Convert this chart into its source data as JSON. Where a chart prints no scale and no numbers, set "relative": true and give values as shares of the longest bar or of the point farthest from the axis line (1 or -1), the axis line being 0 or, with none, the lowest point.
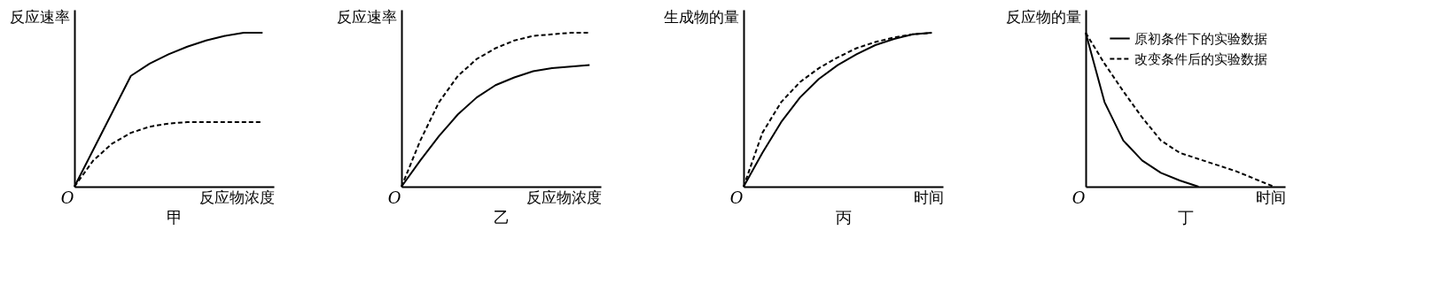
{
  "chart_data": [
    {
      "type": "line",
      "title": "甲",
      "xlabel": "反应物浓度",
      "ylabel": "反应速率",
      "relative": true,
      "annotations": [
        "O"
      ],
      "categories": [
        null,
        null,
        null,
        null,
        null,
        null,
        null,
        null,
        null,
        null,
        null
      ],
      "series": [
        {
          "color": "#000000",
          "line_style": "solid",
          "values": [
            0,
            0.24,
            0.48,
            0.72,
            0.8,
            0.86,
            0.91,
            0.95,
            0.98,
            1.0,
            1.0
          ]
        },
        {
          "color": "#000000",
          "line_style": "dashed",
          "values": [
            0,
            0.17,
            0.28,
            0.35,
            0.39,
            0.41,
            0.42,
            0.42,
            0.42,
            0.42,
            0.42
          ]
        }
      ]
    },
    {
      "type": "line",
      "title": "乙",
      "xlabel": "反应物浓度",
      "ylabel": "反应速率",
      "relative": true,
      "annotations": [
        "O"
      ],
      "categories": [
        null,
        null,
        null,
        null,
        null,
        null,
        null,
        null,
        null,
        null,
        null
      ],
      "series": [
        {
          "color": "#000000",
          "line_style": "solid",
          "values": [
            0,
            0.17,
            0.33,
            0.47,
            0.58,
            0.66,
            0.71,
            0.75,
            0.77,
            0.78,
            0.79
          ]
        },
        {
          "color": "#000000",
          "line_style": "dashed",
          "values": [
            0,
            0.3,
            0.55,
            0.72,
            0.83,
            0.9,
            0.95,
            0.98,
            0.99,
            1.0,
            1.0
          ]
        }
      ]
    },
    {
      "type": "line",
      "title": "丙",
      "xlabel": "时间",
      "ylabel": "生成物的量",
      "relative": true,
      "annotations": [
        "O"
      ],
      "categories": [
        null,
        null,
        null,
        null,
        null,
        null,
        null,
        null,
        null,
        null,
        null
      ],
      "series": [
        {
          "color": "#000000",
          "line_style": "solid",
          "values": [
            0,
            0.22,
            0.42,
            0.58,
            0.7,
            0.79,
            0.86,
            0.92,
            0.96,
            0.99,
            1.0
          ]
        },
        {
          "color": "#000000",
          "line_style": "dashed",
          "values": [
            0,
            0.35,
            0.55,
            0.68,
            0.77,
            0.84,
            0.9,
            0.94,
            0.97,
            0.99,
            1.0
          ]
        }
      ]
    },
    {
      "type": "line",
      "title": "丁",
      "xlabel": "时间",
      "ylabel": "反应物的量",
      "relative": true,
      "annotations": [
        "O"
      ],
      "legend": "top right",
      "categories": [
        null,
        null,
        null,
        null,
        null,
        null,
        null,
        null,
        null,
        null,
        null
      ],
      "series": [
        {
          "name": "原初条件下的实验数据",
          "color": "#000000",
          "line_style": "solid",
          "values": [
            1.0,
            0.55,
            0.3,
            0.17,
            0.09,
            0.04,
            0.0,
            null,
            null,
            null,
            null
          ]
        },
        {
          "name": "改变条件后的实验数据",
          "color": "#000000",
          "line_style": "dashed",
          "values": [
            1.0,
            0.8,
            0.62,
            0.45,
            0.3,
            0.22,
            0.18,
            0.14,
            0.1,
            0.05,
            0.0
          ]
        }
      ]
    }
  ]
}
